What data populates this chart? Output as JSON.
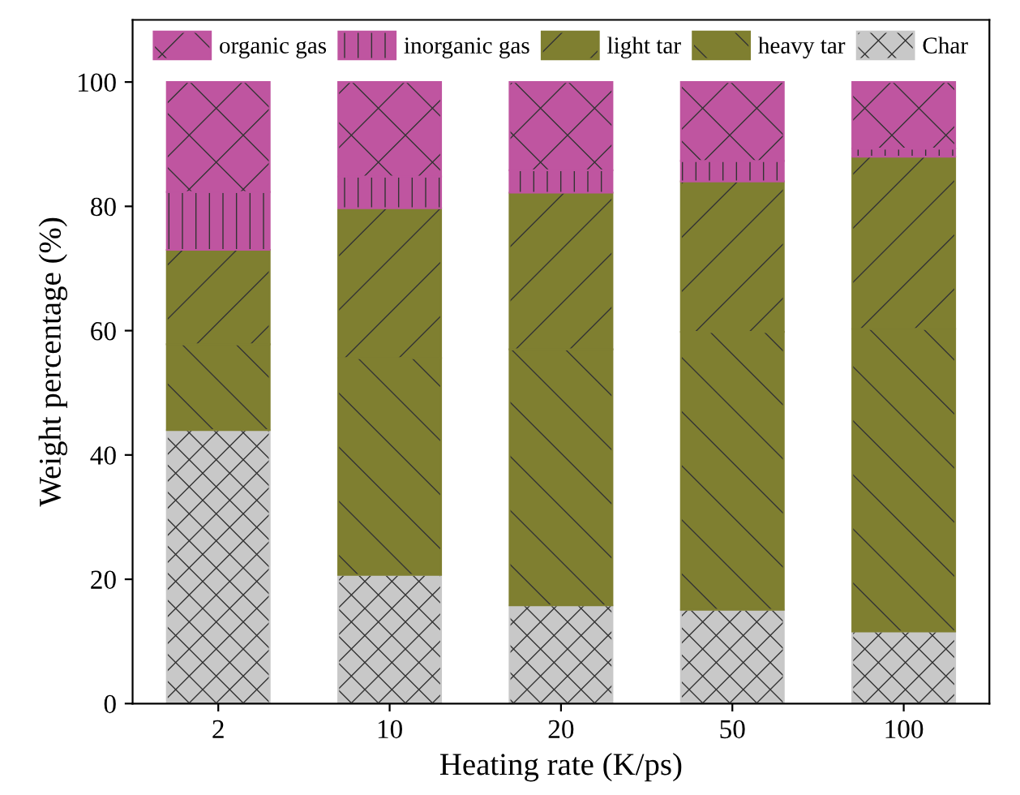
{
  "chart_data": {
    "type": "bar",
    "stacked": true,
    "xlabel": "Heating rate (K/ps)",
    "ylabel": "Weight percentage (%)",
    "categories": [
      "2",
      "10",
      "20",
      "50",
      "100"
    ],
    "series": [
      {
        "name": "Char",
        "color": "#c8c8c8",
        "values": [
          44.0,
          20.7,
          15.8,
          15.1,
          11.6
        ]
      },
      {
        "name": "heavy tar",
        "color": "#7f7f30",
        "values": [
          13.8,
          34.9,
          41.2,
          44.7,
          48.7
        ]
      },
      {
        "name": "light tar",
        "color": "#7f7f30",
        "values": [
          15.2,
          24.1,
          25.2,
          24.2,
          27.7
        ]
      },
      {
        "name": "inorganic gas",
        "color": "#bf55a0",
        "values": [
          9.3,
          5.1,
          3.6,
          3.3,
          1.3
        ]
      },
      {
        "name": "organic gas",
        "color": "#bf55a0",
        "values": [
          17.7,
          15.2,
          14.2,
          12.7,
          10.7
        ]
      }
    ],
    "ylim": [
      0,
      110
    ],
    "yticks": [
      0,
      20,
      40,
      60,
      80,
      100
    ],
    "grid": false,
    "legend": "top"
  }
}
